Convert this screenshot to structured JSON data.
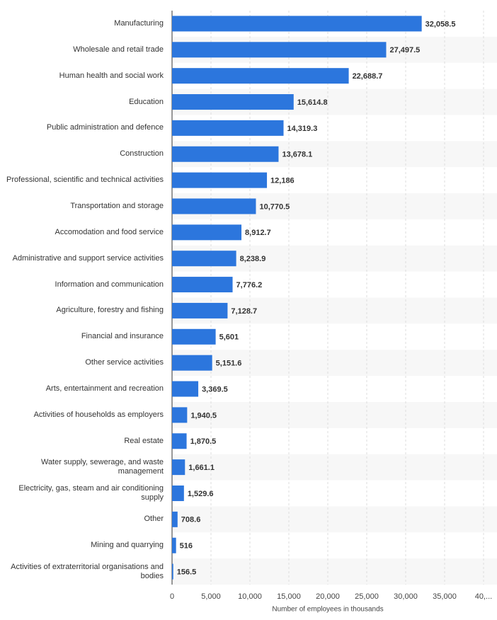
{
  "chart_data": {
    "type": "bar",
    "orientation": "horizontal",
    "categories": [
      "Manufacturing",
      "Wholesale and retail trade",
      "Human health and social work",
      "Education",
      "Public administration and defence",
      "Construction",
      "Professional, scientific and technical activities",
      "Transportation and storage",
      "Accomodation and food service",
      "Administrative and support service activities",
      "Information and communication",
      "Agriculture, forestry and fishing",
      "Financial and insurance",
      "Other service activities",
      "Arts, entertainment and recreation",
      "Activities of households as employers",
      "Real estate",
      "Water supply, sewerage, and waste management",
      "Electricity, gas, steam and air conditioning supply",
      "Other",
      "Mining and quarrying",
      "Activities of extraterritorial organisations and bodies"
    ],
    "values": [
      32058.5,
      27497.5,
      22688.7,
      15614.8,
      14319.3,
      13678.1,
      12186,
      10770.5,
      8912.7,
      8238.9,
      7776.2,
      7128.7,
      5601,
      5151.6,
      3369.5,
      1940.5,
      1870.5,
      1661.1,
      1529.6,
      708.6,
      516,
      156.5
    ],
    "value_labels": [
      "32,058.5",
      "27,497.5",
      "22,688.7",
      "15,614.8",
      "14,319.3",
      "13,678.1",
      "12,186",
      "10,770.5",
      "8,912.7",
      "8,238.9",
      "7,776.2",
      "7,128.7",
      "5,601",
      "5,151.6",
      "3,369.5",
      "1,940.5",
      "1,870.5",
      "1,661.1",
      "1,529.6",
      "708.6",
      "516",
      "156.5"
    ],
    "color": "#2c76dd",
    "xlabel": "Number of employees in thousands",
    "xlim": [
      0,
      40000
    ],
    "xticks": [
      0,
      {
        "value": 5000,
        "label": "5,000"
      },
      {
        "value": 10000,
        "label": "10,000"
      },
      {
        "value": 15000,
        "label": "15,000"
      },
      {
        "value": 20000,
        "label": "20,000"
      },
      {
        "value": 25000,
        "label": "25,000"
      },
      {
        "value": 30000,
        "label": "30,000"
      },
      {
        "value": 35000,
        "label": "35,000"
      },
      {
        "value": 40000,
        "label": "40,..."
      }
    ],
    "grid": true
  }
}
